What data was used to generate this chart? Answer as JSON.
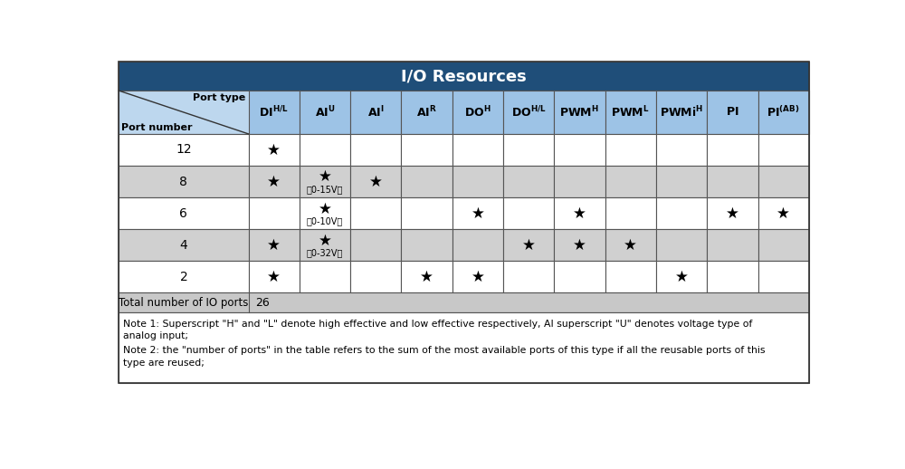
{
  "title": "I/O Resources",
  "title_bg": "#1F4E79",
  "title_color": "#FFFFFF",
  "header_bg": "#BDD7EE",
  "row_bg_white": "#FFFFFF",
  "row_bg_gray": "#D0D0D0",
  "total_row_bg": "#C8C8C8",
  "notes_bg": "#FFFFFF",
  "border_color": "#555555",
  "col_headers_math": [
    "$\\mathbf{DI^{H/L}}$",
    "$\\mathbf{AI^{U}}$",
    "$\\mathbf{AI^{I}}$",
    "$\\mathbf{AI^{R}}$",
    "$\\mathbf{DO^{H}}$",
    "$\\mathbf{DO^{H/L}}$",
    "$\\mathbf{PWM^{H}}$",
    "$\\mathbf{PWM^{L}}$",
    "$\\mathbf{PWMi^{H}}$",
    "$\\mathbf{PI}$",
    "$\\mathbf{PI^{(AB)}}$"
  ],
  "port_numbers": [
    12,
    8,
    6,
    4,
    2
  ],
  "stars": {
    "12": [
      0
    ],
    "8": [
      0,
      1,
      2
    ],
    "6": [
      1,
      4,
      6,
      9,
      10
    ],
    "4": [
      0,
      1,
      5,
      6,
      7
    ],
    "2": [
      0,
      3,
      4,
      8
    ]
  },
  "ai_labels": {
    "8": "(0-15V）",
    "6": "(0-10V）",
    "4": "(0-32V）"
  },
  "ai_labels_plain": {
    "8": "（0-15V）",
    "6": "（0-10V）",
    "4": "（0-32V）"
  },
  "total_ports": "26",
  "note1_line1": "Note 1: Superscript \"H\" and \"L\" denote high effective and low effective respectively, AI superscript \"U\" denotes voltage type of",
  "note1_line2": "analog input;",
  "note2_line1": "Note 2: the \"number of ports\" in the table refers to the sum of the most available ports of this type if all the reusable ports of this",
  "note2_line2": "type are reused;"
}
